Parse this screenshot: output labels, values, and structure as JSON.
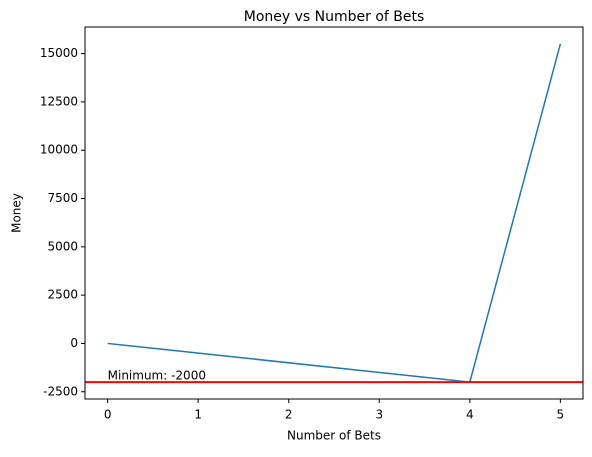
{
  "chart_data": {
    "type": "line",
    "title": "Money vs Number of Bets",
    "x_label": "Number of Bets",
    "y_label": "Money",
    "x": [
      0,
      4,
      5
    ],
    "series": [
      {
        "values": [
          0,
          -2000,
          15500
        ],
        "color": "#1f77b4"
      }
    ],
    "hline": {
      "value": -2000,
      "color": "#ff0000",
      "label": "Minimum: -2000"
    },
    "xlim": [
      -0.25,
      5.25
    ],
    "xticks": [
      0,
      1,
      2,
      3,
      4,
      5
    ],
    "ylim": [
      -2875,
      16375
    ],
    "yticks": [
      -2500,
      0,
      2500,
      5000,
      7500,
      10000,
      12500,
      15000
    ],
    "grid": false
  }
}
